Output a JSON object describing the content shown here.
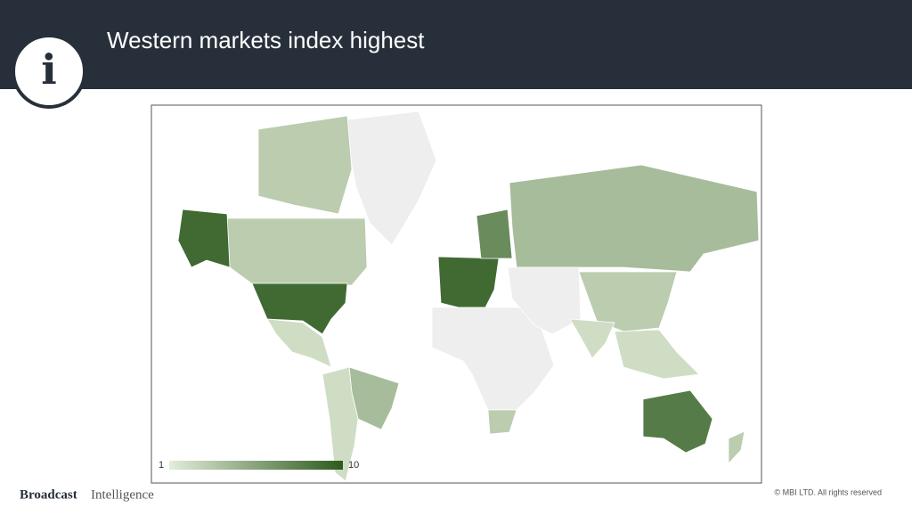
{
  "header": {
    "logo": "i",
    "title": "Western markets index highest"
  },
  "map": {
    "type": "choropleth",
    "legend_min": 1,
    "legend_max": 10,
    "color_low": "#e3edd9",
    "color_high": "#2d5a1e",
    "no_data_color": "#eeeeee",
    "values": [
      3,
      9,
      9,
      1,
      2,
      4,
      2,
      9,
      7,
      4,
      1,
      3,
      1,
      3,
      2,
      2,
      8,
      3,
      3
    ]
  },
  "footer": {
    "brand": "Broadcast",
    "brand_suffix": "Intelligence",
    "copyright": "© MBI LTD. All rights reserved"
  }
}
